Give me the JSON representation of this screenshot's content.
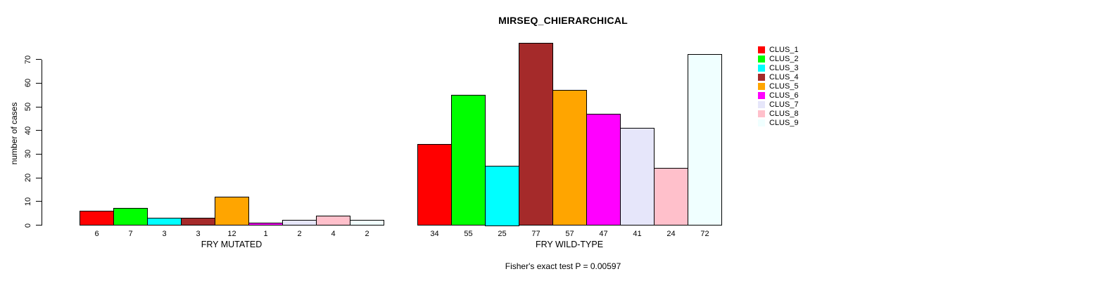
{
  "chart_data": {
    "type": "bar",
    "title": "MIRSEQ_CHIERARCHICAL",
    "ylabel": "number of cases",
    "ylim": [
      0,
      70
    ],
    "yticks": [
      0,
      10,
      20,
      30,
      40,
      50,
      60,
      70
    ],
    "grid": false,
    "legend_position": "right",
    "clusters": [
      "CLUS_1",
      "CLUS_2",
      "CLUS_3",
      "CLUS_4",
      "CLUS_5",
      "CLUS_6",
      "CLUS_7",
      "CLUS_8",
      "CLUS_9"
    ],
    "colors": [
      "#FF0000",
      "#00FF00",
      "#00FFFF",
      "#A52A2A",
      "#FFA500",
      "#FF00FF",
      "#E6E6FA",
      "#FFC0CB",
      "#F0FFFF"
    ],
    "bar_border_color": "#000000",
    "groups": [
      {
        "label": "FRY MUTATED",
        "values": [
          6,
          7,
          3,
          3,
          12,
          1,
          2,
          4,
          2
        ]
      },
      {
        "label": "FRY WILD-TYPE",
        "values": [
          34,
          55,
          25,
          77,
          57,
          47,
          41,
          24,
          72
        ]
      }
    ],
    "annotation": "Fisher's exact test P = 0.00597"
  }
}
